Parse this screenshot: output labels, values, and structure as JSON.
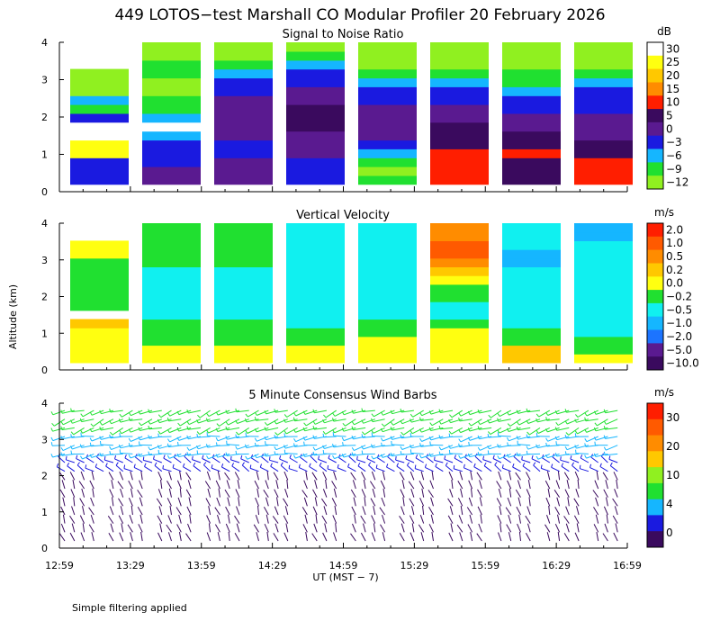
{
  "title": "449 LOTOS−test Marshall CO Modular Profiler 20 February 2026",
  "footnote": "Simple filtering applied",
  "y_axis_label": "Altitude (km)",
  "x_axis_label": "UT  (MST − 7)",
  "x_ticks": [
    "12:59",
    "13:29",
    "13:59",
    "14:29",
    "14:59",
    "15:29",
    "15:59",
    "16:29",
    "16:59"
  ],
  "y_ticks": [
    "0",
    "1",
    "2",
    "3",
    "4"
  ],
  "colors": {
    "darkpurple": "#3a0a5e",
    "purple": "#5a1a90",
    "blue": "#1a1ae0",
    "medblue": "#1c74ff",
    "lightblue": "#15b6ff",
    "cyan": "#10f0f0",
    "green": "#20e030",
    "lime": "#90f020",
    "yellow": "#ffff10",
    "gold": "#ffc800",
    "orange": "#ff8c00",
    "redorange": "#ff5a00",
    "red": "#ff1e00",
    "darkred": "#7a0000",
    "black": "#000000"
  },
  "chart_data": [
    {
      "type": "heatmap",
      "title": "Signal to Noise Ratio",
      "xlabel": "UT  (MST − 7)",
      "ylabel": "Altitude (km)",
      "ylim": [
        0,
        4
      ],
      "colorbar_unit": "dB",
      "colorbar_labels": [
        "30",
        "25",
        "20",
        "15",
        "10",
        "5",
        "0",
        "−3",
        "−6",
        "−9",
        "−12"
      ],
      "colorbar_colors": [
        "#ffffff",
        "#ffff10",
        "#ffc800",
        "#ff8c00",
        "#ff1e00",
        "#3a0a5e",
        "#5a1a90",
        "#1a1ae0",
        "#15b6ff",
        "#20e030",
        "#90f020"
      ],
      "time_blocks": [
        "12:59-13:29",
        "13:29-13:59",
        "13:59-14:29",
        "14:29-14:59",
        "14:59-15:29",
        "15:29-15:59",
        "15:59-16:29",
        "16:29-16:59"
      ],
      "gate_altitudes_km": [
        0.25,
        0.5,
        0.75,
        1.0,
        1.25,
        1.5,
        1.75,
        2.0,
        2.25,
        2.5,
        2.75,
        3.0,
        3.25,
        3.5,
        3.75,
        4.0
      ],
      "profiles_dB": [
        [
          -3,
          -3,
          -3,
          26,
          28,
          30,
          30,
          -3,
          -9,
          -6,
          -12,
          -12,
          -12,
          null,
          null,
          null
        ],
        [
          0,
          0,
          -3,
          -3,
          -3,
          -6,
          30,
          -6,
          -9,
          -9,
          -12,
          -12,
          -9,
          -9,
          -12,
          -12
        ],
        [
          0,
          0,
          0,
          -3,
          -3,
          0,
          0,
          0,
          0,
          0,
          -3,
          -3,
          -6,
          -9,
          -12,
          -12
        ],
        [
          -3,
          -3,
          -3,
          0,
          0,
          0,
          5,
          5,
          5,
          0,
          0,
          -3,
          -3,
          -6,
          -9,
          -12
        ],
        [
          -9,
          -12,
          -9,
          -6,
          -3,
          0,
          0,
          0,
          0,
          -3,
          -3,
          -6,
          -9,
          -12,
          -12,
          -12
        ],
        [
          10,
          10,
          10,
          10,
          5,
          5,
          5,
          0,
          0,
          -3,
          -3,
          -6,
          -9,
          -12,
          -12,
          -12
        ],
        [
          5,
          5,
          5,
          10,
          5,
          5,
          0,
          0,
          -3,
          -3,
          -6,
          -9,
          -9,
          -12,
          -12,
          -12
        ],
        [
          10,
          10,
          10,
          5,
          5,
          0,
          0,
          0,
          -3,
          -3,
          -3,
          -6,
          -9,
          -12,
          -12,
          -12
        ]
      ]
    },
    {
      "type": "heatmap",
      "title": "Vertical Velocity",
      "xlabel": "UT  (MST − 7)",
      "ylabel": "Altitude (km)",
      "ylim": [
        0,
        4
      ],
      "colorbar_unit": "m/s",
      "colorbar_labels": [
        "2.0",
        "1.0",
        "0.5",
        "0.2",
        "0.0",
        "−0.2",
        "−0.5",
        "−1.0",
        "−2.0",
        "−5.0",
        "−10.0"
      ],
      "colorbar_colors": [
        "#ff1e00",
        "#ff5a00",
        "#ff8c00",
        "#ffc800",
        "#ffff10",
        "#20e030",
        "#10f0f0",
        "#15b6ff",
        "#1c74ff",
        "#5a1a90",
        "#3a0a5e"
      ],
      "time_blocks": [
        "12:59-13:29",
        "13:29-13:59",
        "13:59-14:29",
        "14:29-14:59",
        "14:59-15:29",
        "15:29-15:59",
        "15:59-16:29",
        "16:29-16:59"
      ],
      "gate_altitudes_km": [
        0.25,
        0.5,
        0.75,
        1.0,
        1.25,
        1.5,
        1.75,
        2.0,
        2.25,
        2.5,
        2.75,
        3.0,
        3.25,
        3.5,
        3.75,
        4.0
      ],
      "profiles_ms": [
        [
          0.0,
          0.0,
          0.0,
          0.0,
          0.2,
          null,
          -0.2,
          -0.2,
          -0.2,
          -0.2,
          -0.2,
          -0.2,
          0.0,
          0.0,
          null,
          null
        ],
        [
          0.0,
          0.0,
          -0.2,
          -0.2,
          -0.2,
          -0.5,
          -0.5,
          -0.5,
          -0.5,
          -0.5,
          -0.5,
          -0.2,
          -0.2,
          -0.2,
          -0.2,
          -0.2
        ],
        [
          0.0,
          0.0,
          -0.2,
          -0.2,
          -0.2,
          -0.5,
          -0.5,
          -0.5,
          -0.5,
          -0.5,
          -0.5,
          -0.2,
          -0.2,
          -0.2,
          -0.2,
          -0.2
        ],
        [
          0.0,
          0.0,
          -0.2,
          -0.2,
          -0.5,
          -0.5,
          -0.5,
          -0.5,
          -0.5,
          -0.5,
          -0.5,
          -0.5,
          -0.5,
          -0.5,
          -0.5,
          -0.5
        ],
        [
          0.0,
          0.0,
          0.0,
          -0.2,
          -0.2,
          -0.5,
          -0.5,
          -0.5,
          -0.5,
          -0.5,
          -0.5,
          -0.5,
          -0.5,
          -0.5,
          -0.5,
          -0.5
        ],
        [
          0.0,
          0.0,
          0.0,
          0.0,
          -0.2,
          -0.5,
          -0.5,
          -0.2,
          -0.2,
          0.0,
          0.2,
          0.5,
          1.0,
          1.0,
          0.5,
          0.5
        ],
        [
          0.2,
          0.2,
          -0.2,
          -0.2,
          -0.5,
          -0.5,
          -0.5,
          -0.5,
          -0.5,
          -0.5,
          -0.5,
          -1.0,
          -1.0,
          -0.5,
          -0.5,
          -0.5
        ],
        [
          0.0,
          -0.2,
          -0.2,
          -0.5,
          -0.5,
          -0.5,
          -0.5,
          -0.5,
          -0.5,
          -0.5,
          -0.5,
          -0.5,
          -0.5,
          -0.5,
          -1.0,
          -1.0
        ]
      ]
    },
    {
      "type": "scatter",
      "title": "5 Minute Consensus Wind Barbs",
      "xlabel": "UT  (MST − 7)",
      "ylabel": "Altitude (km)",
      "ylim": [
        0,
        4
      ],
      "colorbar_unit": "m/s",
      "colorbar_labels": [
        "30",
        "20",
        "10",
        "4",
        "0"
      ],
      "colorbar_colors": [
        "#ff1e00",
        "#ff5a00",
        "#ff8c00",
        "#ffc800",
        "#90f020",
        "#20e030",
        "#15b6ff",
        "#1a1ae0",
        "#3a0a5e"
      ],
      "barb_layers": [
        {
          "alt_range_km": [
            0,
            2
          ],
          "direction_deg": 340,
          "speed_ms": 2,
          "color": "#3a0a5e"
        },
        {
          "alt_range_km": [
            2,
            2.6
          ],
          "direction_deg": 300,
          "speed_ms": 5,
          "color": "#1a1ae0"
        },
        {
          "alt_range_km": [
            2.6,
            3.2
          ],
          "direction_deg": 260,
          "speed_ms": 8,
          "color": "#15b6ff"
        },
        {
          "alt_range_km": [
            3.2,
            4
          ],
          "direction_deg": 250,
          "speed_ms": 11,
          "color": "#20e030"
        }
      ]
    }
  ]
}
